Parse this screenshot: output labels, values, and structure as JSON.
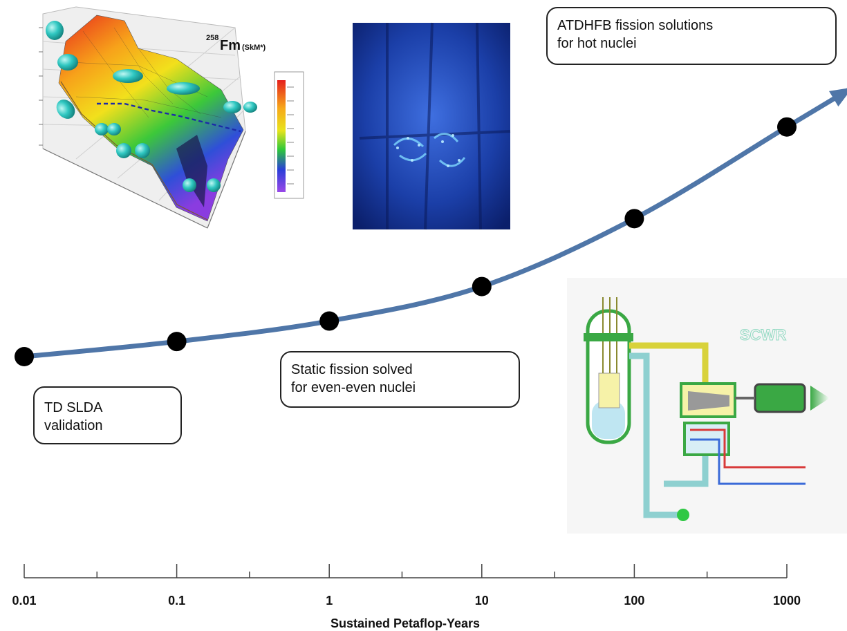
{
  "chart_data": {
    "type": "line",
    "xscale": "log",
    "xlabel": "Sustained Petaflop-Years",
    "ylabel": "",
    "xlim": [
      0.01,
      1000
    ],
    "x_ticks": [
      "0.01",
      "0.1",
      "1",
      "10",
      "100",
      "1000"
    ],
    "points": [
      {
        "x": 0.01,
        "y": 1.0
      },
      {
        "x": 0.1,
        "y": 1.14
      },
      {
        "x": 1,
        "y": 1.33
      },
      {
        "x": 10,
        "y": 1.65
      },
      {
        "x": 100,
        "y": 2.28
      },
      {
        "x": 1000,
        "y": 3.13
      }
    ],
    "annotations": [
      {
        "lines": [
          "TD SLDA",
          "validation"
        ]
      },
      {
        "lines": [
          "Static fission solved",
          "for even-even nuclei"
        ]
      },
      {
        "lines": [
          "ATDHFB fission solutions",
          "for hot nuclei"
        ]
      }
    ],
    "line_color": "#4f76a8",
    "marker_color": "#000000"
  },
  "fm_plot": {
    "mass_number": "258",
    "element": "Fm",
    "model": "(SkM*)"
  },
  "colors": {
    "line": "#4f76a8",
    "sphere": "#2fc7c1",
    "reactor_bg": "#1b3fa8"
  }
}
